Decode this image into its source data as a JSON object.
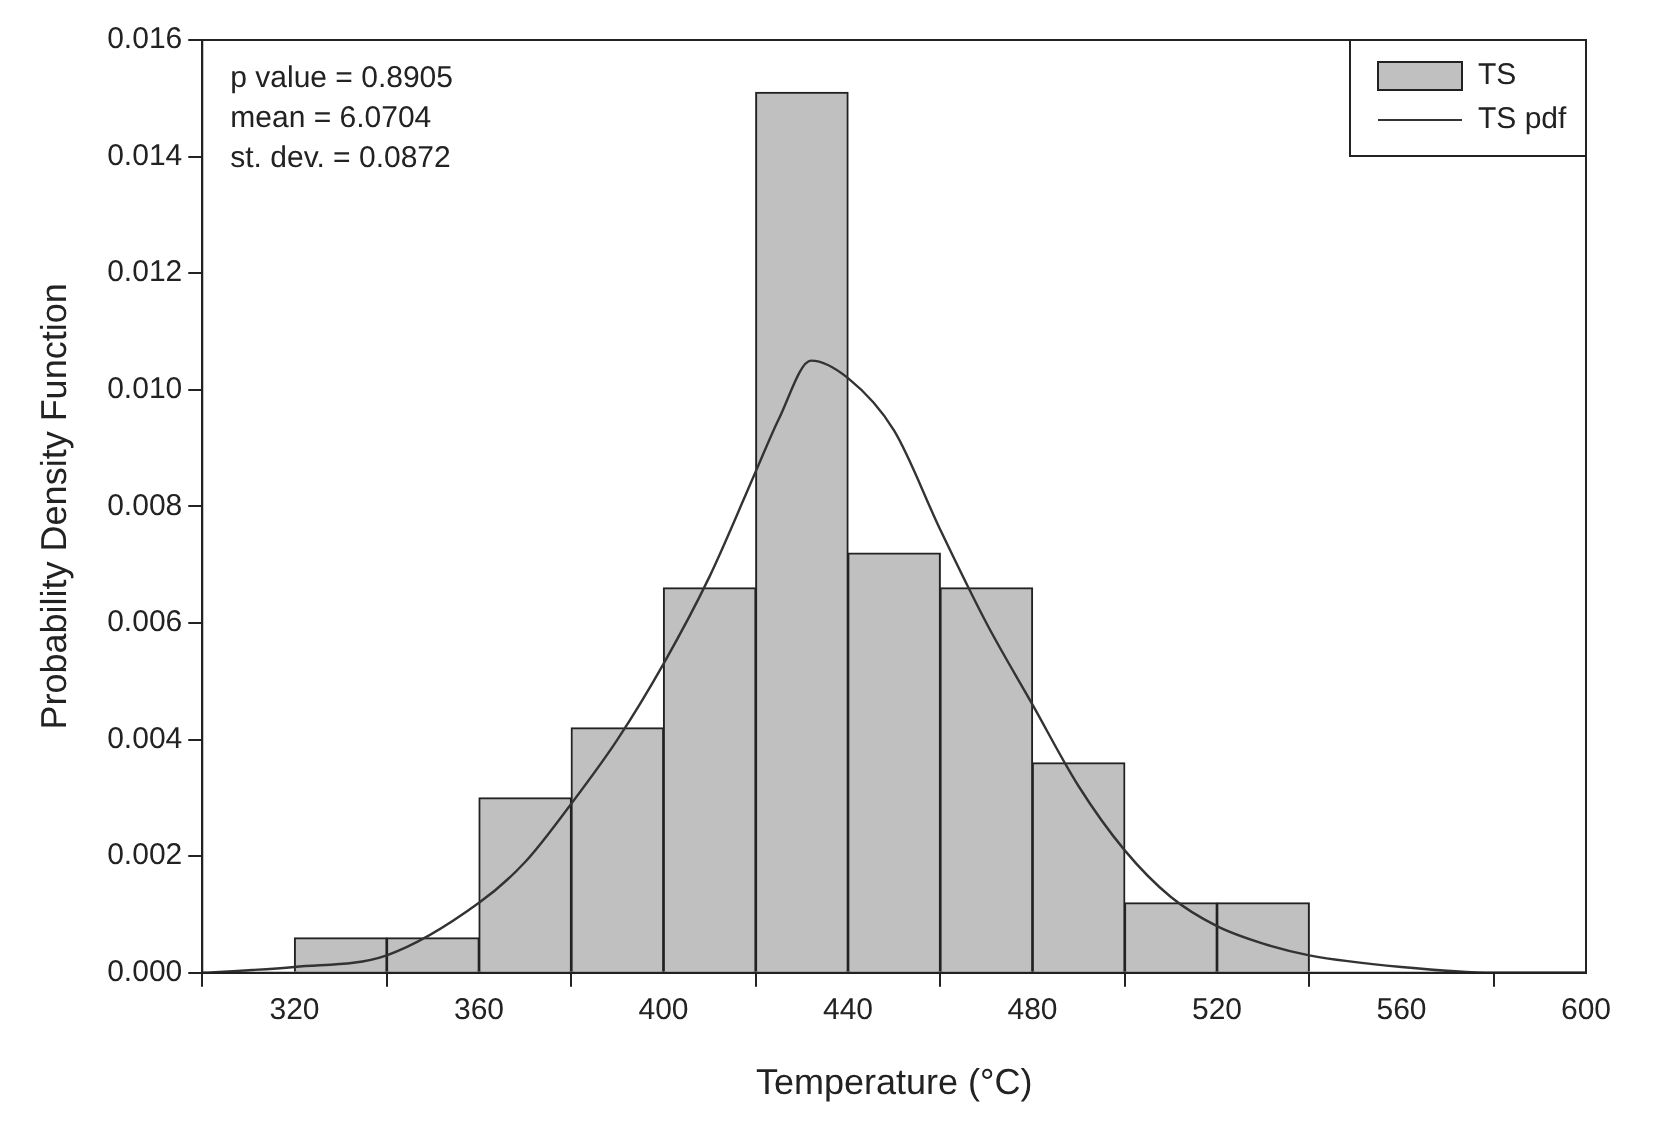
{
  "chart_data": {
    "type": "histogram",
    "xlabel": "Temperature (°C)",
    "ylabel": "Probability Density Function",
    "annotations": [
      "p value = 0.8905",
      "mean = 6.0704",
      "st. dev. = 0.0872"
    ],
    "bins": [
      320,
      340,
      360,
      380,
      400,
      420,
      440,
      460,
      480,
      500,
      520,
      540
    ],
    "series": [
      {
        "name": "TS",
        "color": "#c0c0c0",
        "values": [
          0.0006,
          0.0006,
          0.003,
          0.0042,
          0.0066,
          0.0151,
          0.0072,
          0.0066,
          0.0036,
          0.0012,
          0.0012
        ]
      },
      {
        "name": "TS pdf",
        "type": "line",
        "color": "#333333",
        "x": [
          300,
          320,
          340,
          360,
          370,
          380,
          390,
          400,
          410,
          420,
          425,
          432,
          440,
          450,
          460,
          470,
          480,
          490,
          500,
          510,
          520,
          530,
          540,
          560,
          580,
          600
        ],
        "values": [
          0,
          0.0001,
          0.0003,
          0.0012,
          0.0019,
          0.0029,
          0.004,
          0.0053,
          0.0068,
          0.0086,
          0.0095,
          0.0105,
          0.0102,
          0.0093,
          0.0076,
          0.006,
          0.0046,
          0.0032,
          0.0021,
          0.0013,
          0.0008,
          0.0005,
          0.0003,
          0.0001,
          0,
          0
        ]
      }
    ],
    "xlim": [
      300,
      600
    ],
    "xticks": [
      320,
      360,
      400,
      440,
      480,
      520,
      560,
      600
    ],
    "ylim": [
      0,
      0.016
    ],
    "yticks": [
      {
        "value": 0,
        "label": "0.000"
      },
      {
        "value": 0.002,
        "label": "0.002"
      },
      {
        "value": 0.004,
        "label": "0.004"
      },
      {
        "value": 0.006,
        "label": "0.006"
      },
      {
        "value": 0.008,
        "label": "0.008"
      },
      {
        "value": 0.01,
        "label": "0.010"
      },
      {
        "value": 0.012,
        "label": "0.012"
      },
      {
        "value": 0.014,
        "label": "0.014"
      },
      {
        "value": 0.016,
        "label": "0.016"
      }
    ],
    "grid": false,
    "legend": "top right",
    "marker": "none",
    "line_style": "solid"
  }
}
